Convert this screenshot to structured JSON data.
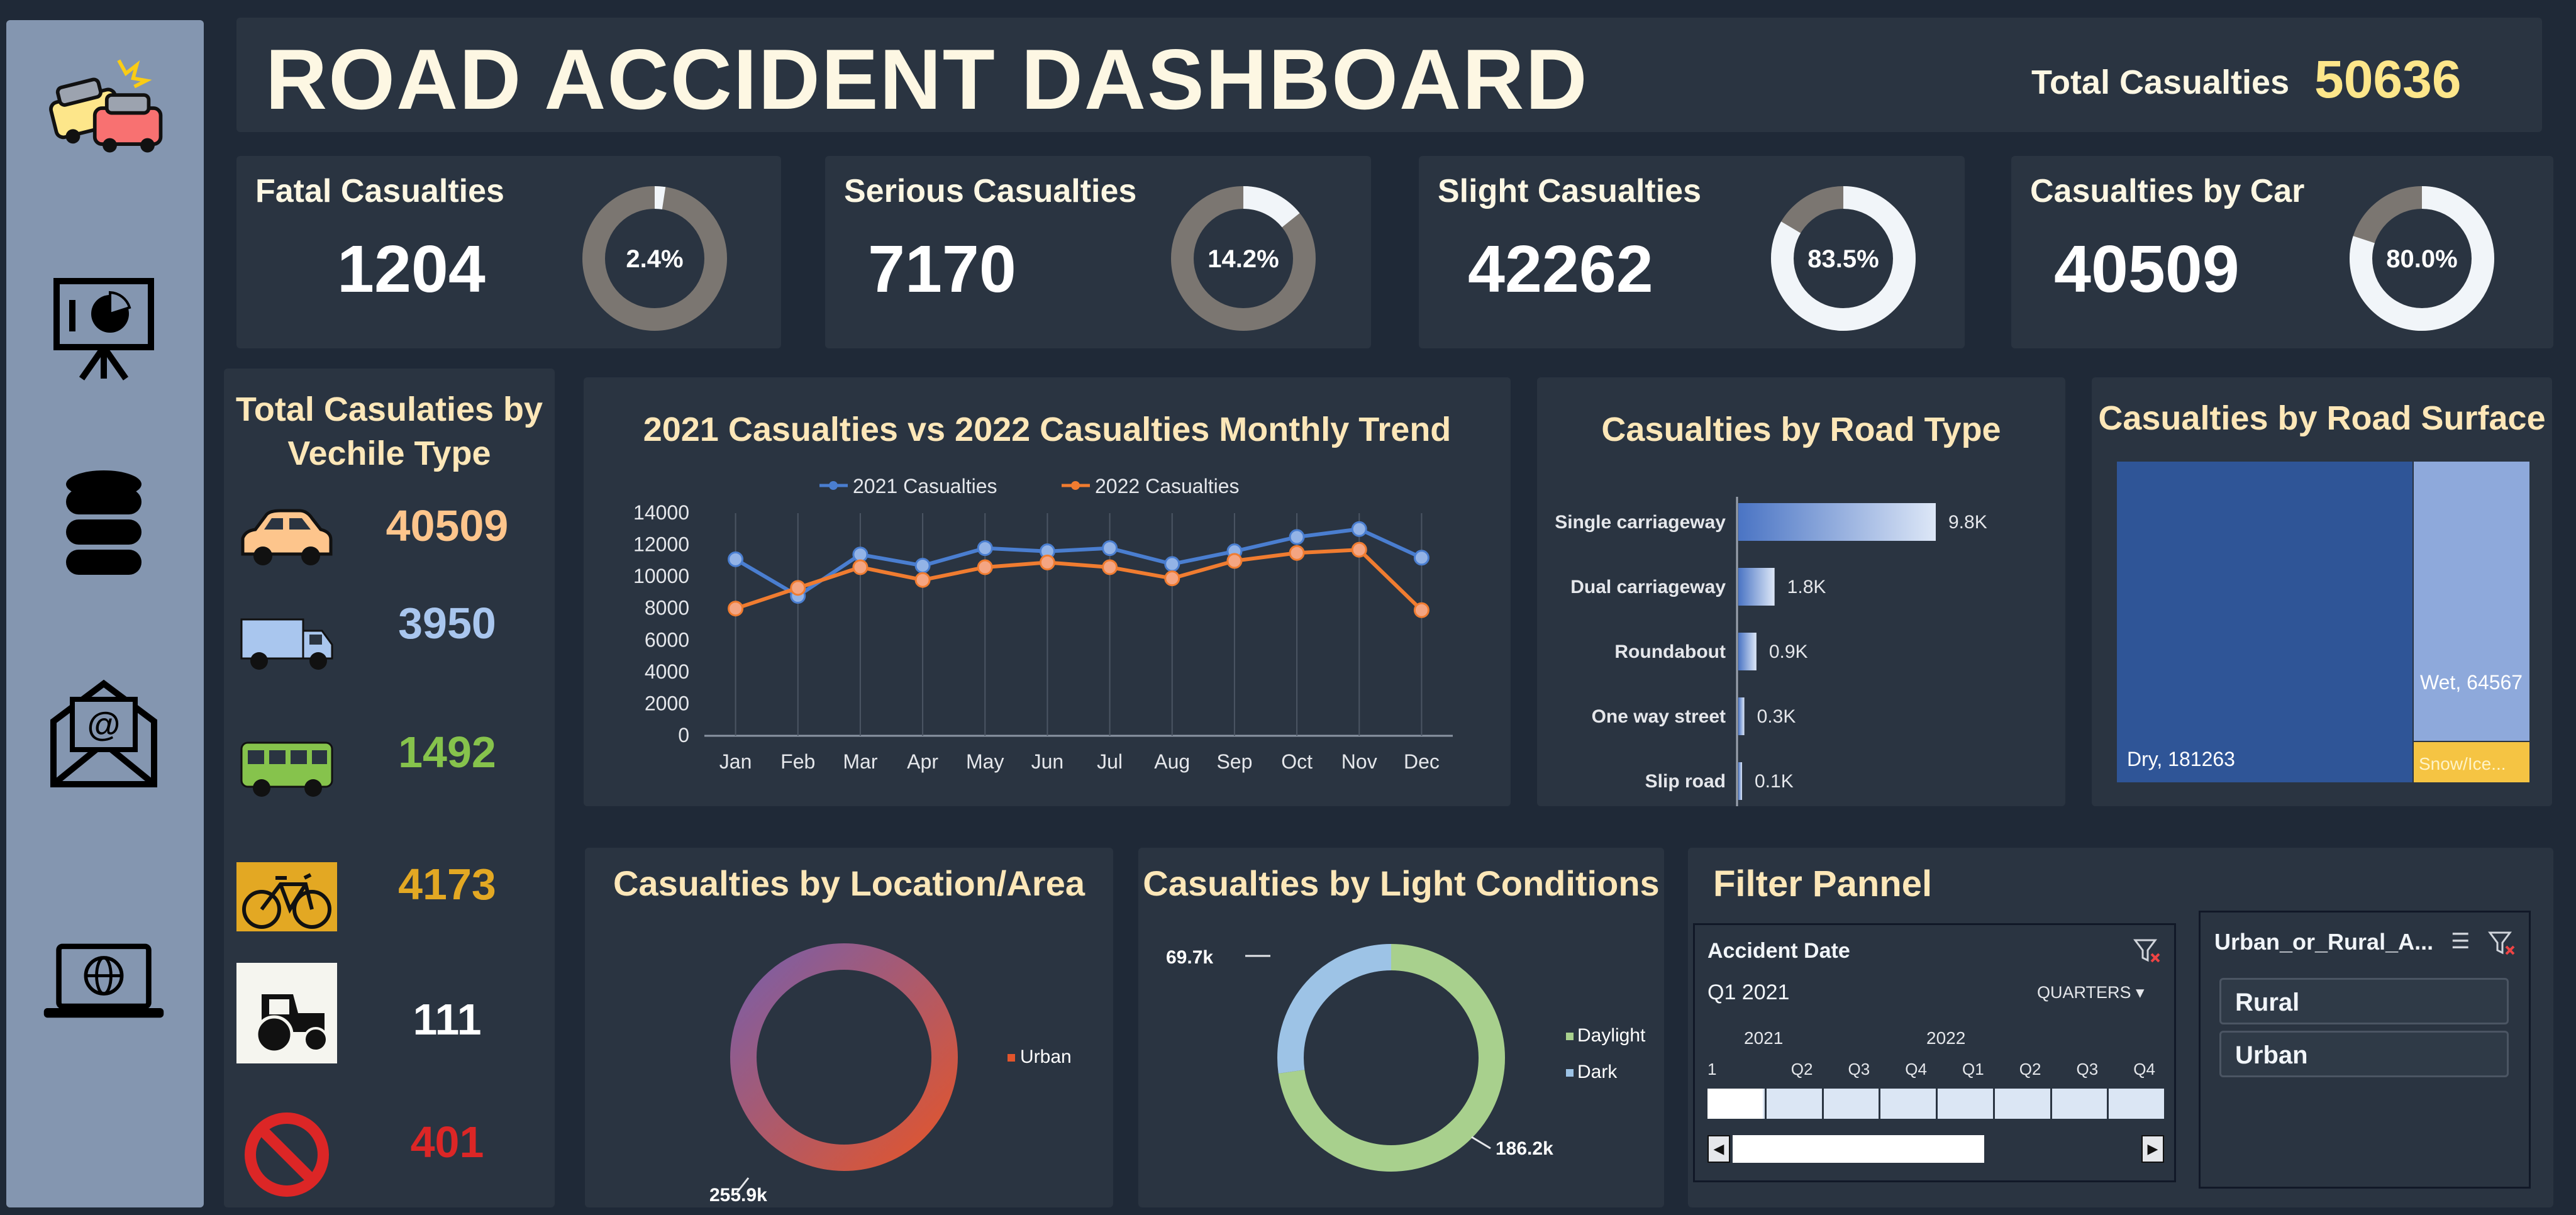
{
  "header": {
    "title": "ROAD ACCIDENT DASHBOARD",
    "total_label": "Total Casualties",
    "total_value": "50636"
  },
  "sidebar": {
    "icons": [
      "car-crash-icon",
      "presentation-icon",
      "database-icon",
      "email-icon",
      "laptop-globe-icon"
    ]
  },
  "kpis": [
    {
      "label": "Fatal Casualties",
      "value": "1204",
      "pct_label": "2.4%",
      "pct": 2.4
    },
    {
      "label": "Serious Casualties",
      "value": "7170",
      "pct_label": "14.2%",
      "pct": 14.2
    },
    {
      "label": "Slight Casualties",
      "value": "42262",
      "pct_label": "83.5%",
      "pct": 83.5
    },
    {
      "label": "Casualties by Car",
      "value": "40509",
      "pct_label": "80.0%",
      "pct": 80.0
    }
  ],
  "vehicles": {
    "title": "Total Casulaties by Vechile Type",
    "items": [
      {
        "icon": "car-icon",
        "value": "40509",
        "color": "#fdc58c"
      },
      {
        "icon": "truck-icon",
        "value": "3950",
        "color": "#a9c6ee"
      },
      {
        "icon": "bus-icon",
        "value": "1492",
        "color": "#86c34c"
      },
      {
        "icon": "bicycle-icon",
        "value": "4173",
        "color": "#e3a823"
      },
      {
        "icon": "tractor-icon",
        "value": "111",
        "color": "#ffffff"
      },
      {
        "icon": "no-entry-icon",
        "value": "401",
        "color": "#dc2626"
      }
    ]
  },
  "trend": {
    "title": "2021 Casualties vs 2022 Casualties Monthly Trend",
    "chart_data": {
      "type": "line",
      "x": [
        "Jan",
        "Feb",
        "Mar",
        "Apr",
        "May",
        "Jun",
        "Jul",
        "Aug",
        "Sep",
        "Oct",
        "Nov",
        "Dec"
      ],
      "series": [
        {
          "name": "2021 Casualties",
          "color": "#4a7ed0",
          "values": [
            11100,
            8800,
            11400,
            10700,
            11800,
            11600,
            11800,
            10800,
            11600,
            12500,
            13000,
            11200
          ]
        },
        {
          "name": "2022 Casualties",
          "color": "#f07c30",
          "values": [
            8000,
            9300,
            10600,
            9800,
            10600,
            10900,
            10600,
            9900,
            11000,
            11500,
            11700,
            7900
          ]
        }
      ],
      "yticks": [
        "14000",
        "12000",
        "10000",
        "8000",
        "6000",
        "4000",
        "2000",
        "0"
      ],
      "ylim": [
        0,
        14000
      ],
      "legend": "top"
    }
  },
  "road_type": {
    "title": "Casualties by Road Type",
    "chart_data": {
      "type": "bar",
      "categories": [
        "Single carriageway",
        "Dual carriageway",
        "Roundabout",
        "One way street",
        "Slip road"
      ],
      "values": [
        9.8,
        1.8,
        0.9,
        0.3,
        0.1
      ],
      "labels": [
        "9.8K",
        "1.8K",
        "0.9K",
        "0.3K",
        "0.1K"
      ],
      "unit": "K"
    }
  },
  "road_surface": {
    "title": "Casualties by Road Surface",
    "chart_data": {
      "type": "treemap",
      "categories": [
        "Dry",
        "Wet",
        "Snow/Ice"
      ],
      "values": [
        181263,
        64567,
        null
      ],
      "labels": [
        "Dry, 181263",
        "Wet, 64567",
        "Snow/Ice..."
      ]
    }
  },
  "location": {
    "title": "Casualties by Location/Area",
    "chart_data": {
      "type": "pie",
      "categories": [
        "Urban"
      ],
      "labels": [
        "255.9k"
      ],
      "legend": [
        "Urban"
      ]
    }
  },
  "light": {
    "title": "Casualties by Light Conditions",
    "chart_data": {
      "type": "pie",
      "categories": [
        "Daylight",
        "Dark"
      ],
      "values": [
        186.2,
        69.7
      ],
      "labels": [
        "186.2k",
        "69.7k"
      ],
      "legend": [
        "Daylight",
        "Dark"
      ]
    }
  },
  "filter": {
    "title": "Filter Pannel",
    "timeline": {
      "header": "Accident Date",
      "selection": "Q1 2021",
      "level": "QUARTERS",
      "years": [
        "2021",
        "2022"
      ],
      "quarters": [
        "1",
        "Q2",
        "Q3",
        "Q4",
        "Q1",
        "Q2",
        "Q3",
        "Q4"
      ]
    },
    "slicer": {
      "header": "Urban_or_Rural_A...",
      "options": [
        "Rural",
        "Urban"
      ]
    }
  }
}
